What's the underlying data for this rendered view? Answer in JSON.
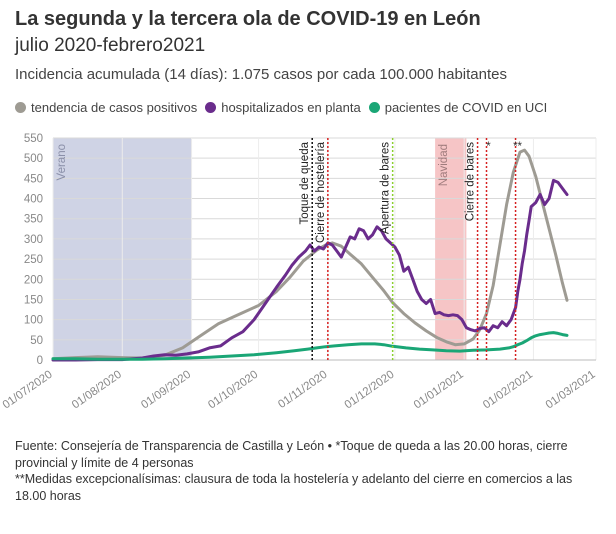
{
  "title": "La segunda y la tercera ola de COVID-19 en León",
  "subtitle": "julio 2020-febrero2021",
  "description": "Incidencia acumulada (14 días): 1.075 casos por cada 100.000 habitantes",
  "legend": [
    {
      "label": "tendencia de casos positivos",
      "color": "#9e9b93"
    },
    {
      "label": "hospitalizados en planta",
      "color": "#6a2c8c"
    },
    {
      "label": "pacientes de COVID en UCI",
      "color": "#1aa676"
    }
  ],
  "footer": {
    "line1": "Fuente: Consejería de Transparencia de Castilla y León • *Toque de queda a las 20.00 horas, cierre provincial y límite de 4 personas",
    "line2": "**Medidas excepcionalísimas: clausura de toda la hostelería y adelanto del cierre en comercios a las 18.00 horas"
  },
  "chart_data": {
    "type": "line",
    "xlabel": "",
    "ylabel": "",
    "ylim": [
      0,
      550
    ],
    "y_ticks": [
      "0",
      "50",
      "100",
      "150",
      "200",
      "250",
      "300",
      "350",
      "400",
      "450",
      "500",
      "550"
    ],
    "x_ticks": [
      {
        "day": 0,
        "label": "01/07/2020"
      },
      {
        "day": 31,
        "label": "01/08/2020"
      },
      {
        "day": 62,
        "label": "01/09/2020"
      },
      {
        "day": 92,
        "label": "01/10/2020"
      },
      {
        "day": 123,
        "label": "01/11/2020"
      },
      {
        "day": 153,
        "label": "01/12/2020"
      },
      {
        "day": 184,
        "label": "01/01/2021"
      },
      {
        "day": 215,
        "label": "01/02/2021"
      },
      {
        "day": 243,
        "label": "01/03/2021"
      }
    ],
    "x_start": "2020-07-01",
    "x_unit": "days since 01/07/2020",
    "shaded_periods": [
      {
        "label": "Verano",
        "start": 0,
        "end": 62,
        "color": "#cfd3e5",
        "text_color": "#8a8fa8"
      },
      {
        "label": "Navidad",
        "start": 171,
        "end": 185,
        "color": "#f6c5c6",
        "text_color": "#a07c7d"
      }
    ],
    "events": [
      {
        "label": "Toque de queda",
        "day": 116,
        "color": "#111111"
      },
      {
        "label": "Cierre de hostelería",
        "day": 123,
        "color": "#d62020"
      },
      {
        "label": "Apertura de bares",
        "day": 152,
        "color": "#8bcf2f"
      },
      {
        "label": "Cierre de bares",
        "day": 190,
        "color": "#d62020"
      },
      {
        "label": "*",
        "day": 194,
        "color": "#d62020"
      },
      {
        "label": "**",
        "day": 207,
        "color": "#d62020"
      }
    ],
    "series": [
      {
        "name": "tendencia de casos positivos",
        "color": "#9e9b93",
        "x": [
          0,
          10,
          20,
          31,
          40,
          50,
          58,
          66,
          74,
          82,
          92,
          100,
          106,
          112,
          118,
          122,
          125,
          129,
          133,
          138,
          143,
          148,
          152,
          157,
          162,
          167,
          172,
          176,
          180,
          184,
          188,
          191,
          194,
          197,
          200,
          203,
          206,
          209,
          211,
          213,
          216,
          219,
          222,
          225,
          228,
          230
        ],
        "values": [
          3,
          6,
          8,
          6,
          5,
          12,
          30,
          60,
          90,
          110,
          135,
          170,
          205,
          245,
          272,
          285,
          290,
          282,
          262,
          238,
          205,
          172,
          142,
          115,
          92,
          72,
          55,
          45,
          38,
          40,
          52,
          75,
          115,
          185,
          285,
          385,
          465,
          515,
          520,
          505,
          455,
          390,
          325,
          260,
          190,
          148
        ]
      },
      {
        "name": "hospitalizados en planta",
        "color": "#6a2c8c",
        "x": [
          0,
          10,
          20,
          31,
          40,
          45,
          50,
          55,
          60,
          65,
          70,
          75,
          80,
          85,
          90,
          95,
          100,
          104,
          107,
          110,
          113,
          115,
          117,
          119,
          121,
          123,
          125,
          127,
          129,
          131,
          133,
          135,
          137,
          139,
          141,
          143,
          145,
          147,
          149,
          151,
          153,
          155,
          157,
          159,
          161,
          163,
          165,
          167,
          169,
          171,
          173,
          175,
          177,
          179,
          181,
          183,
          185,
          187,
          189,
          191,
          193,
          195,
          197,
          199,
          201,
          203,
          205,
          207,
          208,
          209,
          210,
          211,
          212,
          213,
          214,
          216,
          218,
          220,
          222,
          224,
          226,
          228,
          230
        ],
        "values": [
          0,
          0,
          1,
          1,
          5,
          10,
          13,
          12,
          15,
          20,
          30,
          35,
          55,
          70,
          100,
          140,
          180,
          210,
          235,
          255,
          270,
          285,
          270,
          280,
          275,
          290,
          285,
          270,
          255,
          280,
          305,
          300,
          325,
          320,
          300,
          310,
          330,
          320,
          300,
          290,
          280,
          260,
          220,
          230,
          200,
          170,
          150,
          140,
          150,
          115,
          118,
          112,
          110,
          112,
          110,
          100,
          80,
          75,
          72,
          78,
          80,
          70,
          85,
          80,
          95,
          85,
          100,
          130,
          170,
          200,
          240,
          270,
          310,
          345,
          380,
          390,
          410,
          385,
          400,
          445,
          440,
          425,
          410
        ]
      },
      {
        "name": "pacientes de COVID en UCI",
        "color": "#1aa676",
        "x": [
          0,
          10,
          20,
          31,
          40,
          50,
          60,
          70,
          80,
          90,
          100,
          108,
          114,
          118,
          122,
          126,
          132,
          138,
          144,
          148,
          152,
          158,
          164,
          170,
          176,
          182,
          188,
          194,
          200,
          204,
          206,
          208,
          210,
          212,
          214,
          216,
          218,
          220,
          222,
          224,
          226,
          228,
          230
        ],
        "values": [
          3,
          3,
          2,
          2,
          2,
          3,
          5,
          7,
          10,
          13,
          18,
          23,
          27,
          30,
          33,
          35,
          38,
          40,
          40,
          38,
          34,
          30,
          27,
          25,
          23,
          22,
          24,
          25,
          27,
          30,
          33,
          38,
          42,
          48,
          55,
          60,
          63,
          65,
          67,
          68,
          66,
          63,
          61
        ]
      }
    ]
  }
}
